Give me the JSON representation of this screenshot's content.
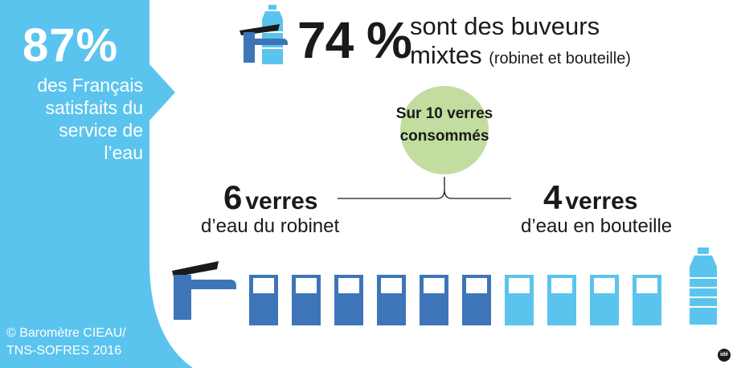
{
  "left_panel": {
    "percentage": "87%",
    "description": "des Français satisfaits du service de l’eau",
    "credit_line1": "© Baromètre CIEAU/",
    "credit_line2": "TNS-SOFRES 2016"
  },
  "top_stat": {
    "percentage": "74 %",
    "line1": "sont des buveurs",
    "line2": "mixtes",
    "line2_small": "(robinet et bouteille)"
  },
  "center": {
    "circle_text": "Sur 10 verres consommés"
  },
  "tap_count": {
    "number": "6",
    "unit": "verres",
    "label": "d’eau du robinet"
  },
  "bottle_count": {
    "number": "4",
    "unit": "verres",
    "label": "d’eau en bouteille"
  },
  "logo_text": "idé",
  "colors": {
    "panel_blue": "#5bc4ee",
    "tap_blue": "#3e75b8",
    "bottle_blue": "#5bc4ee",
    "circle_green": "#c2dd9f",
    "text_dark": "#1a1a1a"
  },
  "glasses": [
    "tap",
    "tap",
    "tap",
    "tap",
    "tap",
    "tap",
    "bottle",
    "bottle",
    "bottle",
    "bottle"
  ]
}
